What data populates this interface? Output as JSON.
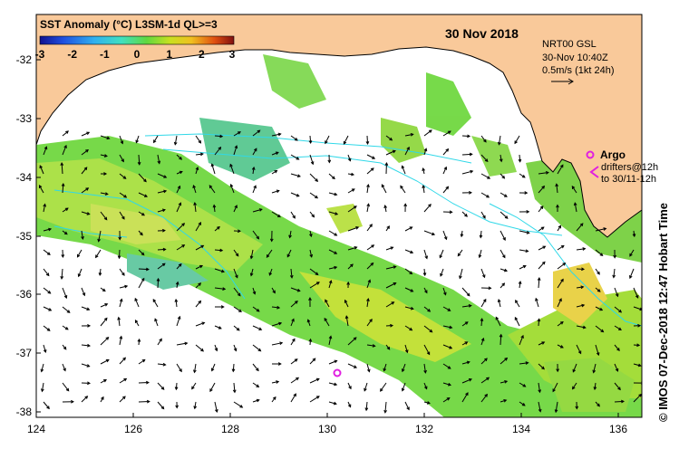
{
  "map": {
    "colorbar_title": "SST Anomaly (°C) L3SM-1d QL>=3",
    "colorbar_ticks": [
      "-3",
      "-2",
      "-1",
      "0",
      "1",
      "2",
      "3"
    ],
    "colorbar_colors": [
      "#1a1aa8",
      "#1f5fe0",
      "#2fb0f0",
      "#40e0c0",
      "#60d840",
      "#b8e020",
      "#f0d020",
      "#f08020",
      "#d02010",
      "#901010"
    ],
    "date": "30 Nov 2018",
    "info_line1": "NRT00 GSL",
    "info_line2": "30-Nov 10:40Z",
    "info_line3": "0.5m/s (1kt 24h)",
    "argo_label": "Argo",
    "drifters_line1": "drifters@12h",
    "drifters_line2": "to 30/11-12h",
    "credit": "© IMOS 07-Dec-2018 12:47 Hobart Time",
    "x_ticks": [
      "124",
      "126",
      "128",
      "130",
      "132",
      "134",
      "136"
    ],
    "y_ticks": [
      "-32",
      "-33",
      "-34",
      "-35",
      "-36",
      "-37",
      "-38"
    ],
    "lon_range": [
      124,
      136.5
    ],
    "lat_range": [
      -38.1,
      -31.3
    ],
    "land_color": "#f9c99a",
    "argo_color": "#e020e0",
    "drifter_color": "#30d8e8"
  }
}
